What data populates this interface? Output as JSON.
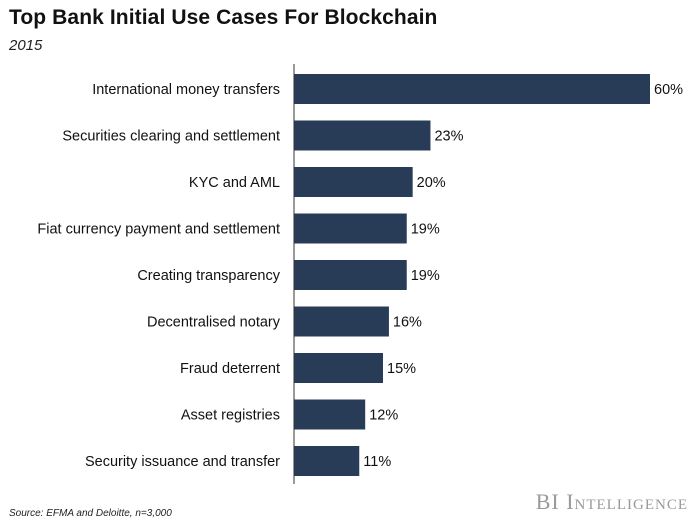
{
  "header": {
    "title": "Top Bank Initial Use Cases For Blockchain",
    "subtitle": "2015"
  },
  "footer": {
    "source": "Source: EFMA and Deloitte, n=3,000",
    "brand": "BI Intelligence"
  },
  "colors": {
    "bar": "#293c57",
    "axis": "#333333"
  },
  "chart_data": {
    "type": "bar",
    "orientation": "horizontal",
    "title": "Top Bank Initial Use Cases For Blockchain",
    "subtitle": "2015",
    "categories": [
      "International money transfers",
      "Securities clearing and settlement",
      "KYC and AML",
      "Fiat currency payment and settlement",
      "Creating transparency",
      "Decentralised notary",
      "Fraud deterrent",
      "Asset registries",
      "Security issuance and transfer"
    ],
    "values": [
      60,
      23,
      20,
      19,
      19,
      16,
      15,
      12,
      11
    ],
    "value_labels": [
      "60%",
      "23%",
      "20%",
      "19%",
      "19%",
      "16%",
      "15%",
      "12%",
      "11%"
    ],
    "unit": "%",
    "xlim": [
      0,
      60
    ],
    "grid": false,
    "legend": "none"
  }
}
